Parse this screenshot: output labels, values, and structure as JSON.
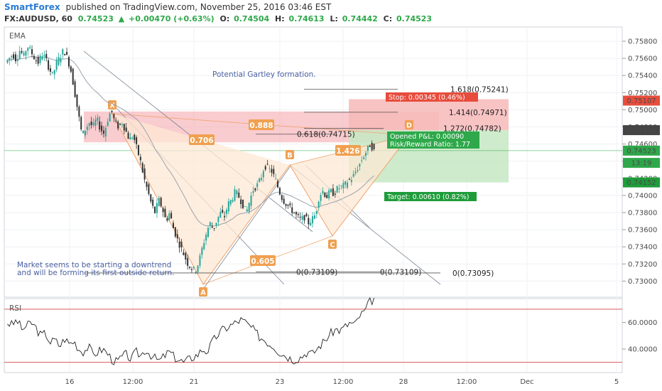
{
  "header": {
    "brand": "SmartForex",
    "published_on": "published on TradingView.com, November 25, 2016 03:46 EST"
  },
  "symbol_line": {
    "symbol": "FX:AUDUSD, 60",
    "last": "0.74523",
    "arrow": "▲",
    "change": "+0.00470 (+0.63%)",
    "o_label": "O:",
    "o_value": "0.74504",
    "h_label": "H:",
    "h_value": "0.74613",
    "l_label": "L:",
    "l_value": "0.74442",
    "c_label": "C:",
    "c_value": "0.74523"
  },
  "chart_data": [
    {
      "type": "candlestick",
      "symbol": "FX:AUDUSD",
      "interval": "60",
      "indicator": "EMA",
      "ylim": [
        0.7295,
        0.7595
      ],
      "y_ticks": [
        "0.75800",
        "0.75600",
        "0.75400",
        "0.75200",
        "0.75000",
        "0.74800",
        "0.74600",
        "0.74400",
        "0.74200",
        "0.74000",
        "0.73800",
        "0.73600",
        "0.73400",
        "0.73200",
        "0.73000"
      ],
      "x_ticks": [
        "16",
        "12:00",
        "21",
        "23",
        "12:00",
        "28",
        "12:00",
        "Dec",
        "5"
      ],
      "price_path": [
        0.7555,
        0.756,
        0.7565,
        0.7558,
        0.757,
        0.7562,
        0.7575,
        0.7568,
        0.756,
        0.7555,
        0.7565,
        0.756,
        0.7548,
        0.754,
        0.7555,
        0.7562,
        0.757,
        0.756,
        0.7545,
        0.752,
        0.7495,
        0.747,
        0.7478,
        0.7485,
        0.748,
        0.749,
        0.7478,
        0.7472,
        0.7488,
        0.75,
        0.7485,
        0.748,
        0.7485,
        0.7475,
        0.7465,
        0.747,
        0.7455,
        0.744,
        0.742,
        0.7405,
        0.739,
        0.738,
        0.7395,
        0.7385,
        0.737,
        0.738,
        0.7362,
        0.735,
        0.734,
        0.733,
        0.732,
        0.7315,
        0.7312,
        0.7322,
        0.734,
        0.7355,
        0.7368,
        0.736,
        0.7372,
        0.738,
        0.7375,
        0.739,
        0.7395,
        0.7405,
        0.7398,
        0.739,
        0.738,
        0.7395,
        0.7408,
        0.7412,
        0.742,
        0.7435,
        0.7432,
        0.7428,
        0.7418,
        0.7405,
        0.7395,
        0.739,
        0.7385,
        0.738,
        0.7375,
        0.7372,
        0.7375,
        0.7368,
        0.7372,
        0.7378,
        0.74,
        0.7405,
        0.7398,
        0.7405,
        0.7402,
        0.7408,
        0.741,
        0.7412,
        0.7418,
        0.742,
        0.7428,
        0.7436,
        0.7445,
        0.7452,
        0.746,
        0.7452
      ],
      "annotations": [
        {
          "text": "Potential Gartley formation."
        },
        {
          "text": "Market seems to be starting a downtrend"
        },
        {
          "text": "and will be forming its first outside return."
        }
      ],
      "pattern": {
        "points": [
          "X",
          "A",
          "B",
          "C",
          "D"
        ],
        "ratios": [
          "0.888",
          "0.706",
          "0.605",
          "1.426"
        ]
      },
      "fib_levels": [
        {
          "label": "1.618(0.75241)",
          "value": 0.75241
        },
        {
          "label": "1.414(0.74971)",
          "value": 0.74971
        },
        {
          "label": "1.272(0.74782)",
          "value": 0.74782
        },
        {
          "label": "0.618(0.74715)",
          "value": 0.74715
        },
        {
          "label": "0(0.73109)",
          "value": 0.73109
        },
        {
          "label": "0(0.73109)",
          "value": 0.73109
        },
        {
          "label": "0(0.73095)",
          "value": 0.73095
        }
      ],
      "position": {
        "stop": "Stop: 0.00345 (0.46%)",
        "opened_pl": "Opened P&L: 0.00090",
        "risk_reward": "Risk/Reward Ratio: 1.77",
        "target": "Target: 0.00610 (0.82%)",
        "entry": 0.74762,
        "stop_price": 0.75107,
        "target_price": 0.74152
      },
      "price_labels": [
        {
          "text": "0.75107",
          "value": 0.75107,
          "color": "#e74c3c"
        },
        {
          "text": "0.74762",
          "value": 0.74762,
          "color": "#444444"
        },
        {
          "text": "0.74523",
          "value": 0.74523,
          "color": "#2ea84a"
        },
        {
          "text": "13:19",
          "value": 0.7438,
          "color": "#2ea84a"
        },
        {
          "text": "0.74152",
          "value": 0.74152,
          "color": "#1e9c3a"
        }
      ]
    },
    {
      "type": "line",
      "indicator": "RSI",
      "ylim": [
        25,
        80
      ],
      "y_ticks": [
        "60.0000",
        "40.0000"
      ],
      "levels": [
        70,
        30
      ],
      "values": [
        60,
        58,
        62,
        55,
        57,
        60,
        56,
        50,
        52,
        45,
        47,
        42,
        48,
        44,
        46,
        40,
        38,
        42,
        36,
        38,
        40,
        37,
        32,
        30,
        34,
        36,
        32,
        38,
        35,
        40,
        36,
        33,
        31,
        35,
        38,
        34,
        32,
        30,
        32,
        34,
        36,
        40,
        38,
        45,
        50,
        54,
        56,
        58,
        60,
        62,
        60,
        57,
        53,
        49,
        47,
        44,
        42,
        38,
        36,
        34,
        32,
        33,
        35,
        38,
        36,
        40,
        44,
        48,
        52,
        55,
        54,
        57,
        60,
        58,
        65,
        68,
        75,
        78
      ]
    }
  ],
  "colors": {
    "up": "#26a69a",
    "down": "#333333",
    "pattern_fill": "#fde8d4",
    "pattern_line": "#f0a36b",
    "stop_fill": "#f7b9b9",
    "target_fill": "#c6e8c3",
    "rsi_level": "#d44040",
    "current_price": "#2ea84a"
  },
  "icons": {
    "trend_arrow": "up-triangle"
  }
}
